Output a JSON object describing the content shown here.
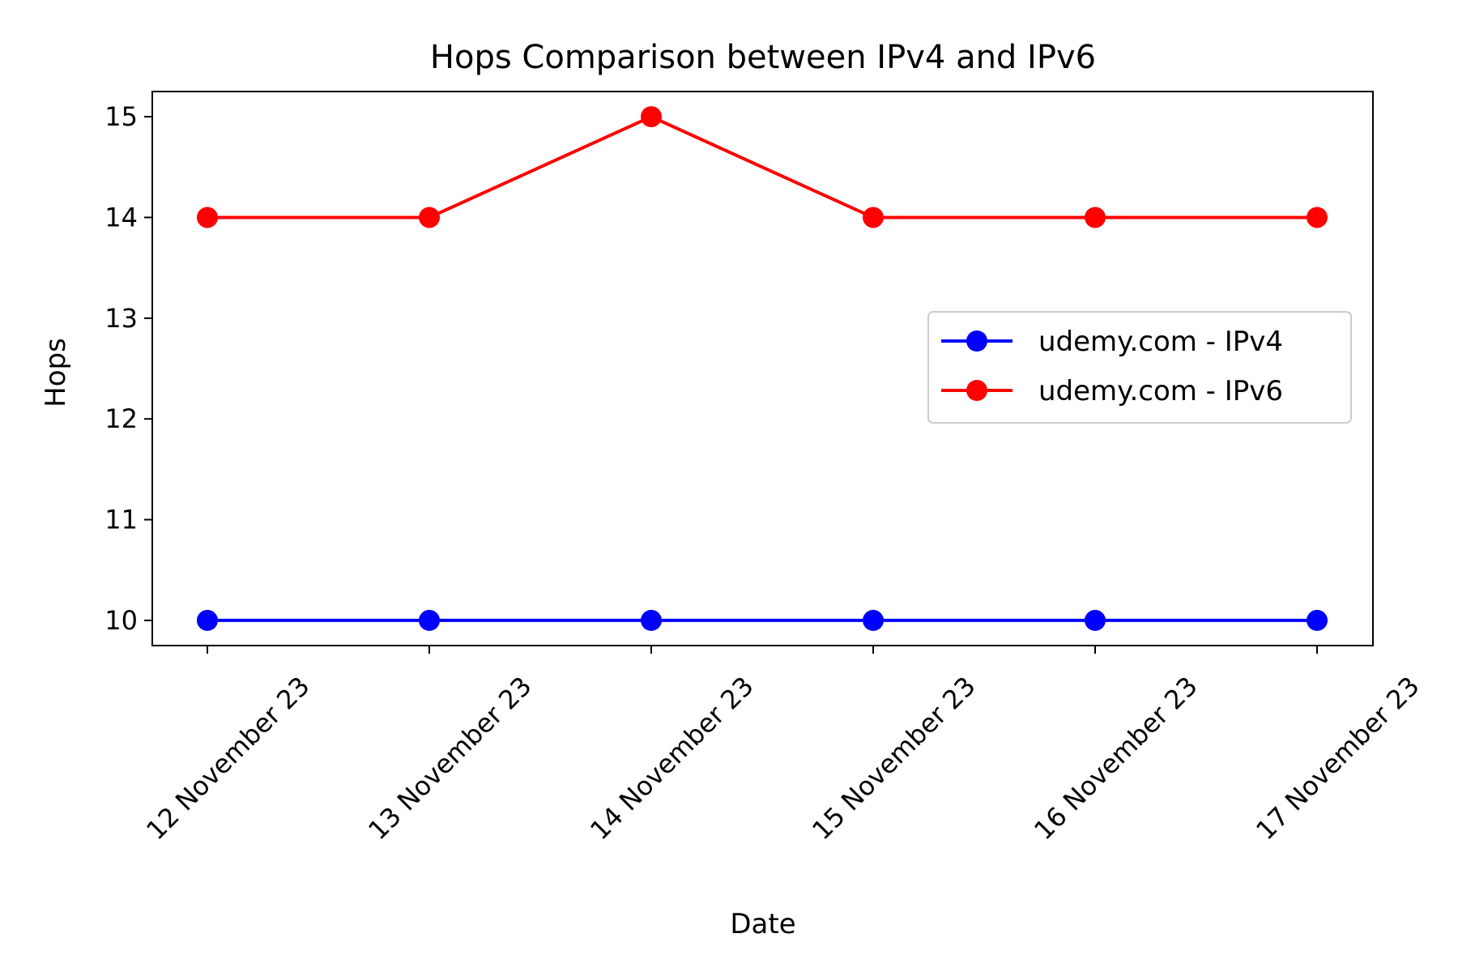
{
  "chart_data": {
    "type": "line",
    "title": "Hops Comparison between IPv4 and IPv6",
    "xlabel": "Date",
    "ylabel": "Hops",
    "categories": [
      "12 November 23",
      "13 November 23",
      "14 November 23",
      "15 November 23",
      "16 November 23",
      "17 November 23"
    ],
    "ylim": [
      9.75,
      15.25
    ],
    "yticks": [
      10,
      11,
      12,
      13,
      14,
      15
    ],
    "grid": false,
    "legend_position": "center-right",
    "series": [
      {
        "name": "udemy.com - IPv4",
        "color": "#0000ff",
        "marker": "circle",
        "values": [
          10,
          10,
          10,
          10,
          10,
          10
        ]
      },
      {
        "name": "udemy.com - IPv6",
        "color": "#ff0000",
        "marker": "circle",
        "values": [
          14,
          14,
          15,
          14,
          14,
          14
        ]
      }
    ]
  }
}
